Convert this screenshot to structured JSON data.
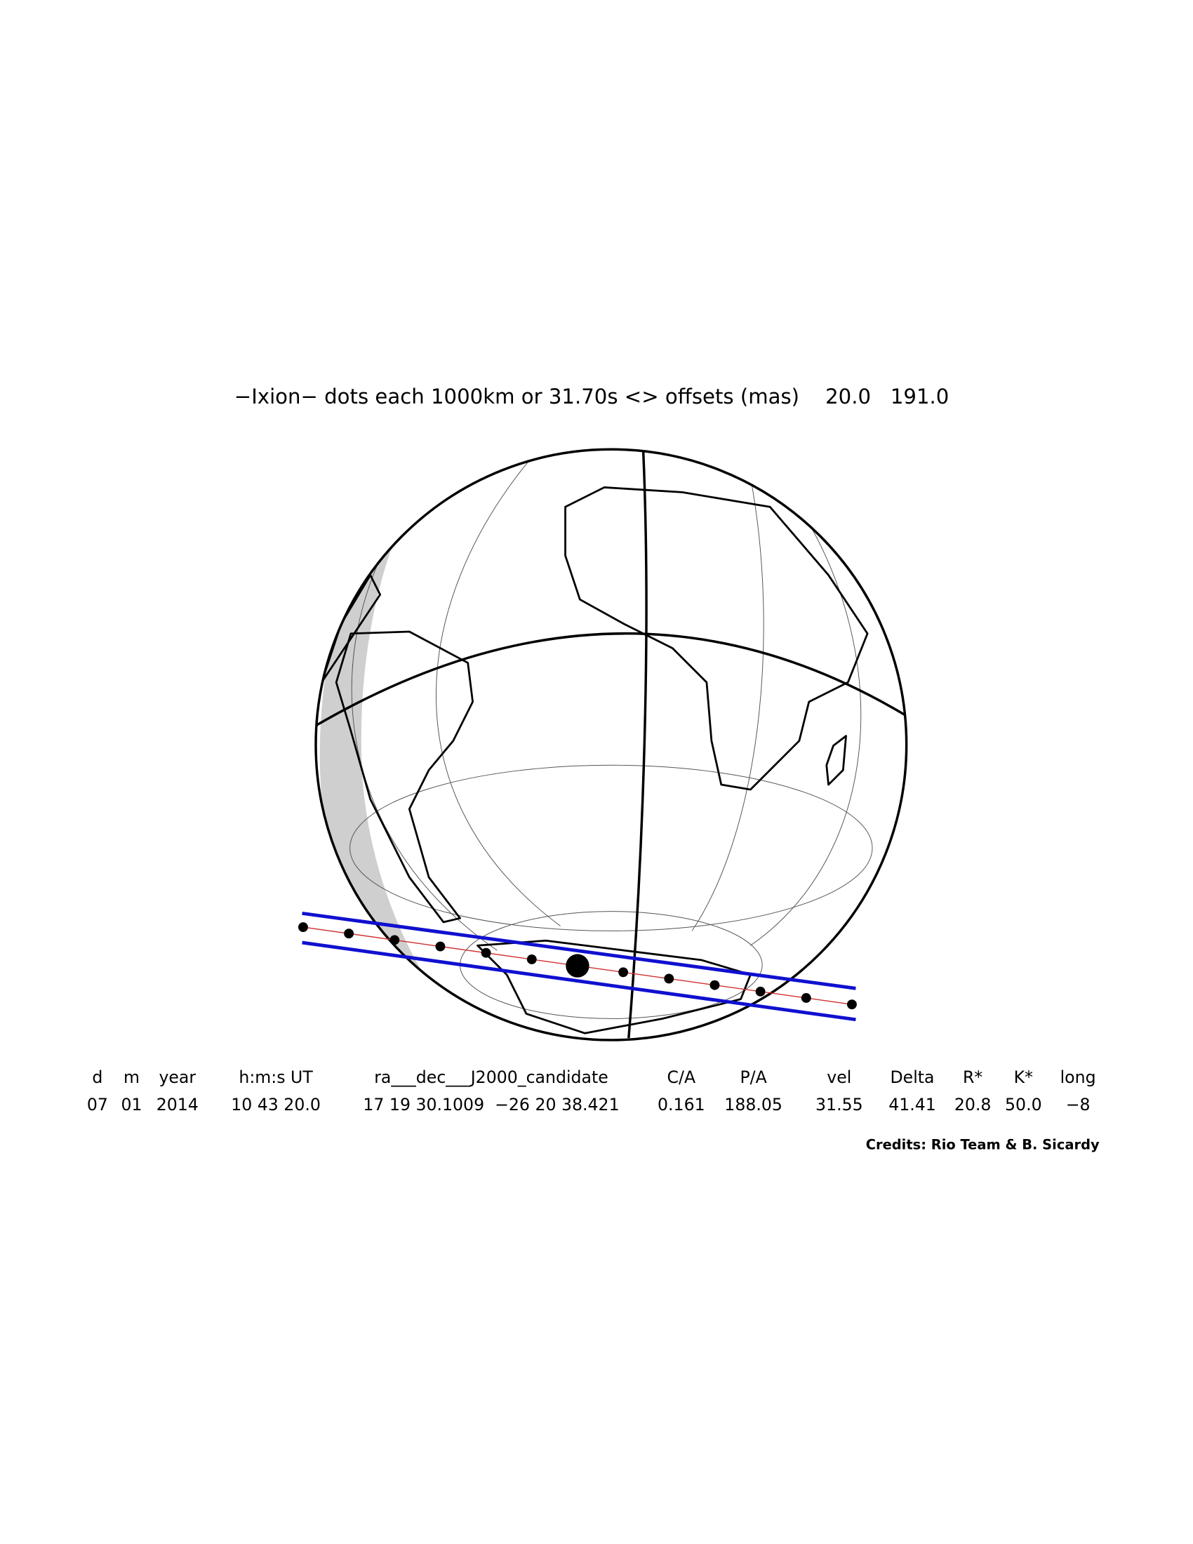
{
  "header": {
    "title": "−Ixion− dots each 1000km or 31.70s <> offsets (mas)    20.0   191.0"
  },
  "table": {
    "columns": [
      "d",
      "m",
      "year",
      "h:m:s UT",
      "ra___dec___J2000_candidate",
      "C/A",
      "P/A",
      "vel",
      "Delta",
      "R*",
      "K*",
      "long"
    ],
    "values": [
      "07",
      "01",
      "2014",
      "10 43 20.0",
      "17 19 30.1009  −26 20 38.421",
      "0.161",
      "188.05",
      "31.55",
      "41.41",
      "20.8",
      "50.0",
      "−8"
    ]
  },
  "credits": "Credits: Rio Team & B. Sicardy"
}
